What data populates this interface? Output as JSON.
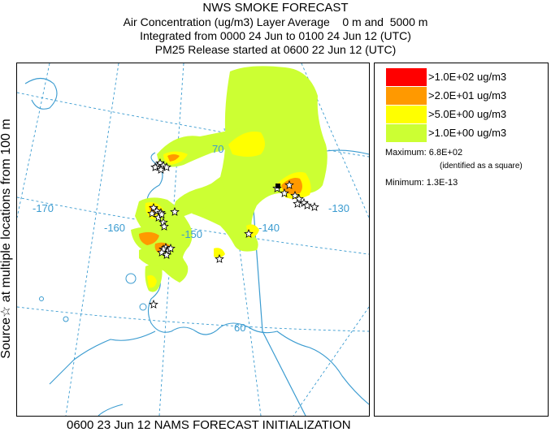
{
  "header": {
    "title": "NWS SMOKE FORECAST",
    "line2": "Air Concentration (ug/m3) Layer Average    0 m and  5000 m",
    "line3": "Integrated from 0000 24 Jun to 0100 24 Jun 12 (UTC)",
    "line4": "PM25 Release started at 0600 22 Jun 12 (UTC)"
  },
  "side_label": "Source☆  at multiple locations  from  100 m",
  "footer": "0600 23 Jun 12 NAMS FORECAST INITIALIZATION",
  "legend": {
    "items": [
      {
        "label": ">1.0E+02 ug/m3",
        "color": "#ff0000"
      },
      {
        "label": ">2.0E+01 ug/m3",
        "color": "#ff9900"
      },
      {
        "label": ">5.0E+00 ug/m3",
        "color": "#ffff00"
      },
      {
        "label": ">1.0E+00 ug/m3",
        "color": "#ccff33"
      }
    ],
    "maximum": "Maximum: 6.8E+02",
    "maximum_note": "(identified as a square)",
    "minimum": "Minimum: 1.3E-13"
  },
  "map": {
    "grid_color": "#3a9bd0",
    "labels": {
      "lon170": "-170",
      "lon160": "-160",
      "lon150": "-150",
      "lon140": "-140",
      "lon130": "-130",
      "lat70": "70",
      "lat60": "60"
    }
  }
}
